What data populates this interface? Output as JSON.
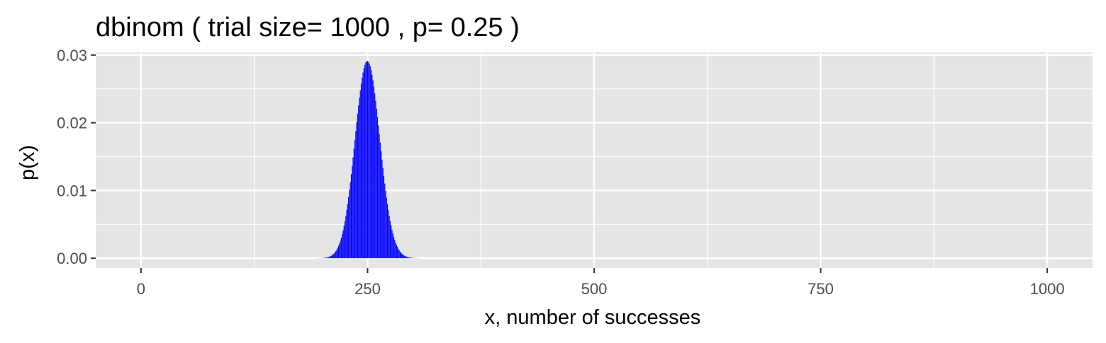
{
  "chart_data": {
    "type": "bar",
    "title": "dbinom ( trial size= 1000 , p= 0.25 )",
    "xlabel": "x, number of successes",
    "ylabel": "p(x)",
    "distribution": {
      "name": "binomial",
      "n": 1000,
      "p": 0.25
    },
    "x_range": [
      0,
      1000
    ],
    "xlim": [
      -50,
      1050
    ],
    "ylim": [
      -0.00145,
      0.0304
    ],
    "x_ticks": [
      0,
      250,
      500,
      750,
      1000
    ],
    "x_tick_labels": [
      "0",
      "250",
      "500",
      "750",
      "1000"
    ],
    "y_ticks": [
      0.0,
      0.01,
      0.02,
      0.03
    ],
    "y_tick_labels": [
      "0.00",
      "0.01",
      "0.02",
      "0.03"
    ],
    "peak": {
      "x": 250,
      "y": 0.0291
    },
    "grid": true,
    "bar_color": "#0000ff",
    "panel_background": "#e5e5e5",
    "grid_color": "#ffffff"
  }
}
